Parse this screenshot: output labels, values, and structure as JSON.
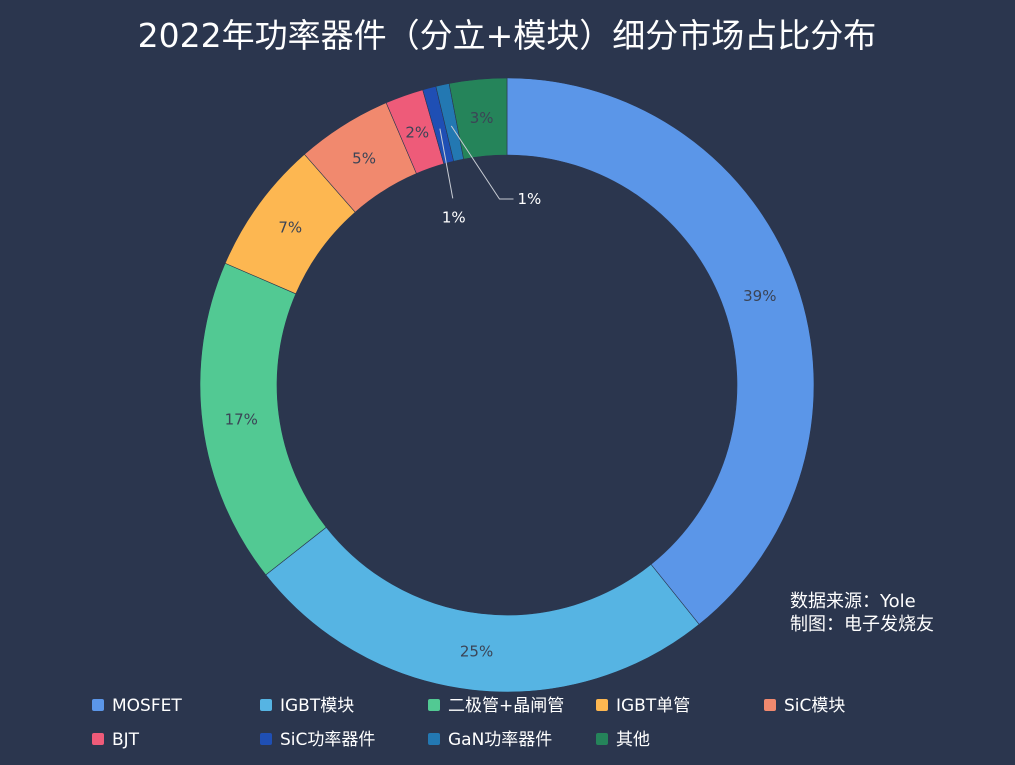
{
  "chart_data": {
    "type": "pie",
    "title": "2022年功率器件（分立+模块）细分市场占比分布",
    "donut": true,
    "categories": [
      "MOSFET",
      "IGBT模块",
      "二极管+晶闸管",
      "IGBT单管",
      "SiC模块",
      "BJT",
      "SiC功率器件",
      "GaN功率器件",
      "其他"
    ],
    "values": [
      39,
      25,
      17,
      7,
      5,
      2,
      0.7,
      0.7,
      3
    ],
    "labels": [
      "39%",
      "25%",
      "17%",
      "7%",
      "5%",
      "2%",
      "1%",
      "1%",
      "3%"
    ],
    "colors": [
      "#5b96e8",
      "#56b4e3",
      "#52c993",
      "#fdb751",
      "#f1896e",
      "#ee5b79",
      "#1f4fb4",
      "#2378b2",
      "#25845a"
    ],
    "legend_position": "bottom"
  },
  "source": {
    "line1": "数据来源：Yole",
    "line2": "制图：电子发烧友"
  }
}
